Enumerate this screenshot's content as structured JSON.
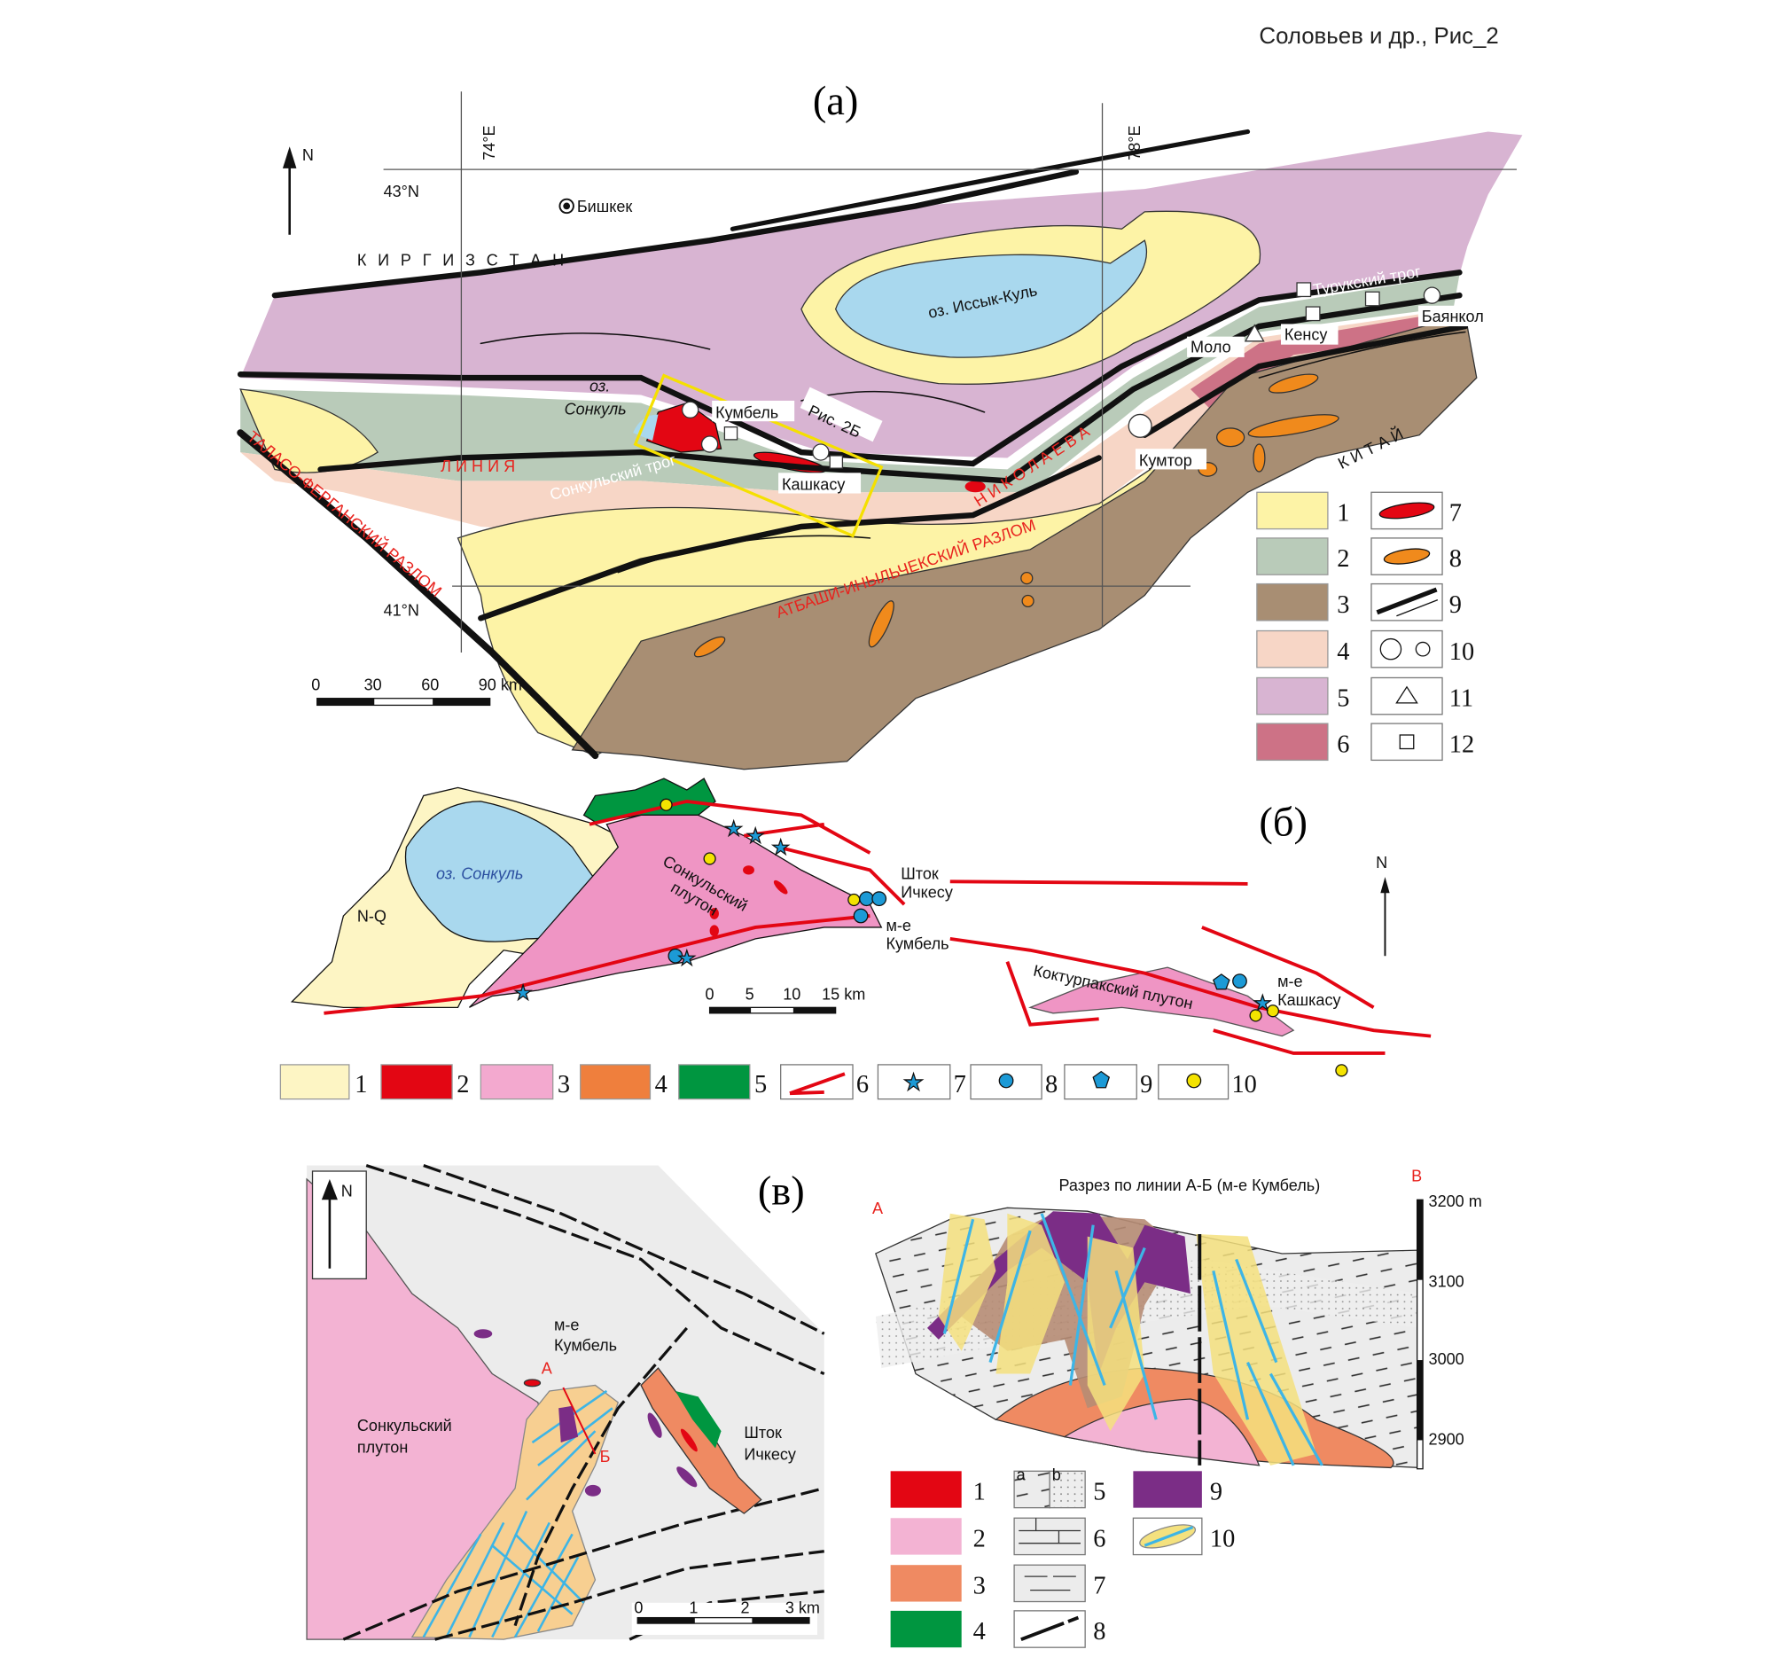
{
  "header": {
    "caption": "Соловьев и др., Рис_2"
  },
  "panel_a": {
    "label": "(а)",
    "grid": {
      "lon1": "74°E",
      "lon2": "78°E",
      "lat1": "43°N",
      "lat2": "41°N"
    },
    "north": "N",
    "cities": {
      "bishkek": "Бишкек"
    },
    "countries": {
      "kyrgyzstan": "К И Р Г И З С Т А Н",
      "china": "К И Т А Й"
    },
    "lakes": {
      "issyk_kul": "оз. Иссык-Куль",
      "sonkul_1": "оз.",
      "sonkul_2": "Сонкуль"
    },
    "deposits": [
      "Кумбель",
      "Кашкасу",
      "Кумтор",
      "Моло",
      "Кенсу",
      "Баянкол"
    ],
    "troughs": {
      "sonkul": "Сонкульский трог",
      "turuk": "Турукский трог"
    },
    "red_labels": {
      "line": "Л И Н И Я",
      "nikolaev": "Н И К О Л А Е В А",
      "atbashi": "АТБАШИ-ИНЫЛЬЧЕКСКИЙ РАЗЛОМ",
      "talas": "ТАЛАСО-ФЕРГАНСКИЙ РАЗЛОМ"
    },
    "inset_label": "Рис. 2Б",
    "scale": {
      "ticks": [
        "0",
        "30",
        "60",
        "90 km"
      ]
    },
    "legend": [
      {
        "n": "1",
        "color": "#fdf3a6"
      },
      {
        "n": "2",
        "color": "#b9cbb9"
      },
      {
        "n": "3",
        "color": "#a88e73"
      },
      {
        "n": "4",
        "color": "#f7d6c6"
      },
      {
        "n": "5",
        "color": "#d8b4d2"
      },
      {
        "n": "6",
        "color": "#cd7286"
      },
      {
        "n": "7",
        "symbol": "red-lens"
      },
      {
        "n": "8",
        "symbol": "orange-lens"
      },
      {
        "n": "9",
        "symbol": "fault-lines"
      },
      {
        "n": "10",
        "symbol": "circles"
      },
      {
        "n": "11",
        "symbol": "triangle"
      },
      {
        "n": "12",
        "symbol": "square"
      }
    ]
  },
  "panel_b": {
    "label": "(б)",
    "north": "N",
    "lake": "оз. Сонкуль",
    "nq": "N-Q",
    "pluton1_1": "Сонкульский",
    "pluton1_2": "плутон",
    "stock_1": "Шток",
    "stock_2": "Ичкесу",
    "kumbel_1": "м-е",
    "kumbel_2": "Кумбель",
    "pluton2": "Коктурпакский плутон",
    "kashkasu_1": "м-е",
    "kashkasu_2": "Кашкасу",
    "scale": {
      "ticks": [
        "0",
        "5",
        "10",
        "15 km"
      ]
    },
    "legend": [
      {
        "n": "1",
        "color": "#fdf5c4"
      },
      {
        "n": "2",
        "color": "#e30613"
      },
      {
        "n": "3",
        "color": "#f3a9cf"
      },
      {
        "n": "4",
        "color": "#ef7f3d"
      },
      {
        "n": "5",
        "color": "#009640"
      },
      {
        "n": "6",
        "symbol": "red-fault"
      },
      {
        "n": "7",
        "symbol": "blue-star"
      },
      {
        "n": "8",
        "symbol": "blue-circle"
      },
      {
        "n": "9",
        "symbol": "blue-pentagon"
      },
      {
        "n": "10",
        "symbol": "yellow-circle"
      }
    ]
  },
  "panel_c": {
    "label": "(в)",
    "north": "N",
    "kumbel_1": "м-е",
    "kumbel_2": "Кумбель",
    "pluton_1": "Сонкульский",
    "pluton_2": "плутон",
    "stock_1": "Шток",
    "stock_2": "Ичкесу",
    "point_a": "А",
    "point_b": "Б",
    "scale": {
      "ticks": [
        "0",
        "1",
        "2",
        "3 km"
      ]
    },
    "section": {
      "title": "Разрез по линии А-Б (м-е Кумбель)",
      "left": "А",
      "right": "B",
      "elevations": [
        "3200 m",
        "3100",
        "3000",
        "2900"
      ]
    },
    "legend": [
      {
        "n": "1",
        "color": "#e30613"
      },
      {
        "n": "2",
        "color": "#f3b3d3"
      },
      {
        "n": "3",
        "color": "#ef8a62"
      },
      {
        "n": "4",
        "color": "#009640"
      },
      {
        "n": "5",
        "symbol": "shale-sandstone",
        "a": "a",
        "b": "b"
      },
      {
        "n": "6",
        "symbol": "limestone"
      },
      {
        "n": "7",
        "symbol": "marl"
      },
      {
        "n": "8",
        "symbol": "fault"
      },
      {
        "n": "9",
        "color": "#7b2d86"
      },
      {
        "n": "10",
        "symbol": "ore-zone"
      }
    ]
  }
}
